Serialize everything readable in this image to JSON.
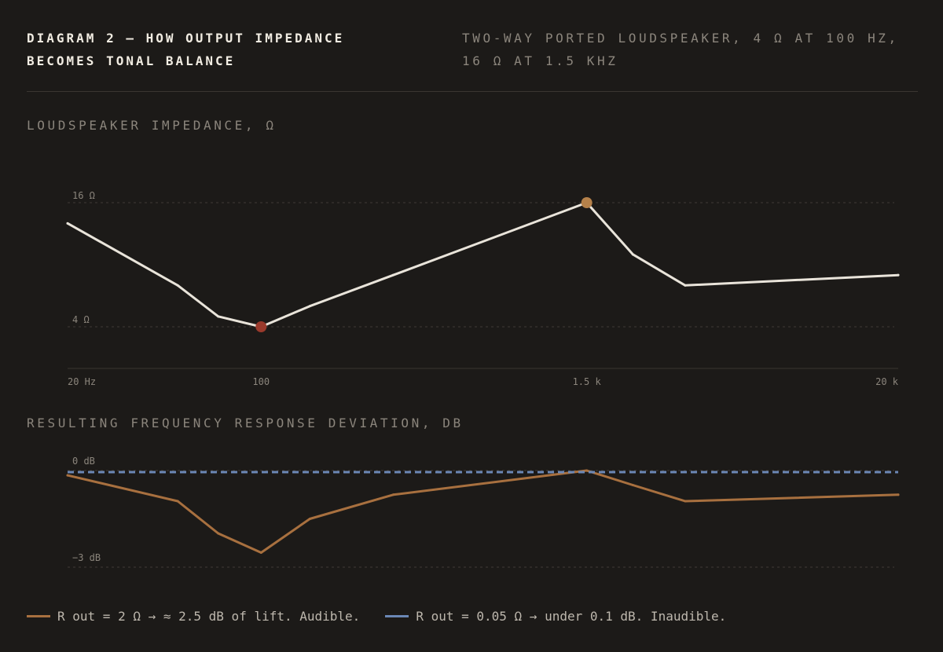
{
  "header": {
    "title": "DIAGRAM 2 — HOW OUTPUT IMPEDANCE BECOMES TONAL BALANCE",
    "subtitle": "TWO-WAY PORTED LOUDSPEAKER, 4 Ω AT 100 HZ, 16 Ω AT 1.5 KHZ"
  },
  "colors": {
    "background": "#1c1a18",
    "impedance_line": "#e9e4da",
    "min_marker": "#9a3a2c",
    "max_marker": "#b5814a",
    "high_rout": "#a8703f",
    "low_rout": "#6b87b5",
    "grid": "#3f3b36"
  },
  "chart_data": [
    {
      "type": "line",
      "title": "LOUDSPEAKER IMPEDANCE, Ω",
      "x_scale": "log",
      "xlim": [
        20,
        20000
      ],
      "x_ticks": [
        {
          "value": 20,
          "label": "20 Hz"
        },
        {
          "value": 100,
          "label": "100"
        },
        {
          "value": 1500,
          "label": "1.5 k"
        },
        {
          "value": 20000,
          "label": "20 k"
        }
      ],
      "y_ticks": [
        {
          "value": 4,
          "label": "4 Ω"
        },
        {
          "value": 16,
          "label": "16 Ω"
        }
      ],
      "ylim": [
        0,
        20
      ],
      "series": [
        {
          "x": [
            20,
            50,
            70,
            100,
            150,
            300,
            1500,
            2200,
            3400,
            20000
          ],
          "y": [
            14,
            8,
            5,
            4,
            6,
            9,
            16,
            11,
            8,
            9
          ]
        }
      ],
      "markers": [
        {
          "x": 100,
          "y": 4,
          "kind": "min"
        },
        {
          "x": 1500,
          "y": 16,
          "kind": "max"
        }
      ]
    },
    {
      "type": "line",
      "title": "RESULTING FREQUENCY RESPONSE DEVIATION, DB",
      "x_scale": "log",
      "xlim": [
        20,
        20000
      ],
      "y_ticks": [
        {
          "value": 0,
          "label": "0 dB"
        },
        {
          "value": -3,
          "label": "−3 dB"
        }
      ],
      "ylim": [
        -3,
        0
      ],
      "series": [
        {
          "name": "R out = 2 Ω → ≈ 2.5 dB of lift. Audible.",
          "x": [
            20,
            50,
            70,
            100,
            150,
            300,
            1500,
            2200,
            3400,
            20000
          ],
          "y": [
            -0.15,
            -0.95,
            -1.95,
            -2.55,
            -1.5,
            -0.75,
            0,
            -0.45,
            -0.95,
            -0.75
          ]
        },
        {
          "name": "R out = 0.05 Ω → under 0.1 dB. Inaudible.",
          "x": [
            20,
            20000
          ],
          "y": [
            -0.05,
            -0.05
          ],
          "style": "dashed"
        }
      ]
    }
  ]
}
